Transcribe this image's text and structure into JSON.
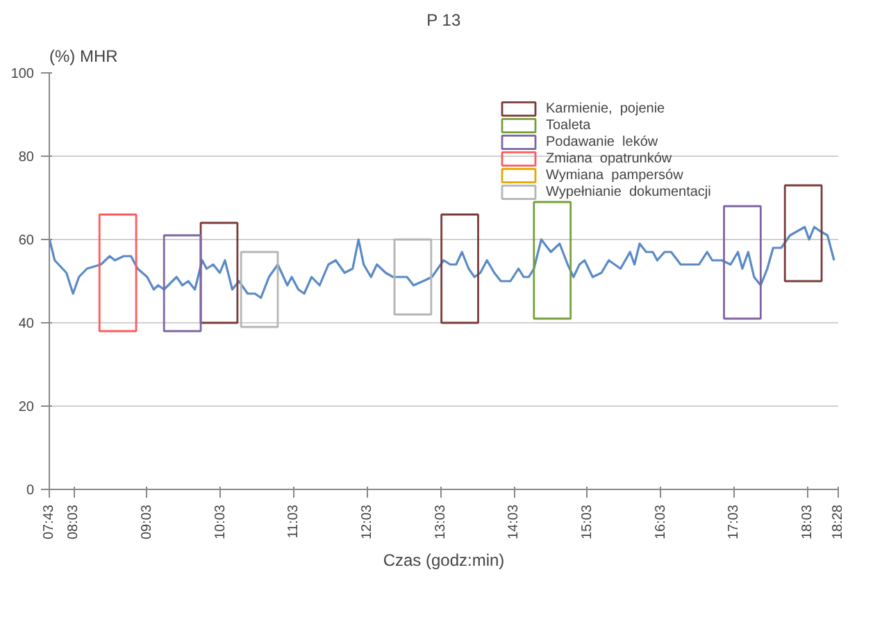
{
  "chart_data": {
    "type": "line",
    "title": "P 13",
    "xlabel": "Czas (godz:min)",
    "ylabel": "(%) MHR",
    "xlim": [
      7.7167,
      18.4667
    ],
    "ylim": [
      0,
      100
    ],
    "yticks": [
      0,
      20,
      40,
      60,
      80,
      100
    ],
    "xticks": [
      {
        "value": 7.7167,
        "label": "07:43"
      },
      {
        "value": 8.05,
        "label": "08:03"
      },
      {
        "value": 9.05,
        "label": "09:03"
      },
      {
        "value": 10.05,
        "label": "10:03"
      },
      {
        "value": 11.05,
        "label": "11:03"
      },
      {
        "value": 12.05,
        "label": "12:03"
      },
      {
        "value": 13.05,
        "label": "13:03"
      },
      {
        "value": 14.05,
        "label": "14:03"
      },
      {
        "value": 15.05,
        "label": "15:03"
      },
      {
        "value": 16.05,
        "label": "16:03"
      },
      {
        "value": 17.05,
        "label": "17:03"
      },
      {
        "value": 18.05,
        "label": "18:03"
      },
      {
        "value": 18.4667,
        "label": "18:28"
      }
    ],
    "grid": "y",
    "legend": "top right",
    "series": [
      {
        "color": "#5a8ac6",
        "x": [
          7.72,
          7.79,
          7.95,
          8.04,
          8.12,
          8.23,
          8.42,
          8.54,
          8.61,
          8.73,
          8.83,
          8.92,
          9.05,
          9.14,
          9.2,
          9.28,
          9.45,
          9.53,
          9.61,
          9.7,
          9.8,
          9.86,
          9.95,
          10.04,
          10.11,
          10.21,
          10.3,
          10.42,
          10.52,
          10.6,
          10.71,
          10.83,
          10.96,
          11.02,
          11.11,
          11.19,
          11.29,
          11.4,
          11.52,
          11.62,
          11.74,
          11.85,
          11.93,
          12.0,
          12.1,
          12.18,
          12.3,
          12.4,
          12.59,
          12.68,
          12.81,
          12.93,
          13.09,
          13.18,
          13.26,
          13.34,
          13.43,
          13.51,
          13.59,
          13.68,
          13.78,
          13.87,
          14.0,
          14.11,
          14.18,
          14.25,
          14.32,
          14.42,
          14.55,
          14.67,
          14.78,
          14.86,
          14.94,
          15.01,
          15.12,
          15.24,
          15.34,
          15.5,
          15.63,
          15.69,
          15.76,
          15.85,
          15.94,
          16.0,
          16.1,
          16.19,
          16.32,
          16.44,
          16.57,
          16.68,
          16.75,
          16.88,
          17.0,
          17.1,
          17.16,
          17.24,
          17.32,
          17.41,
          17.5,
          17.58,
          17.69,
          17.81,
          17.91,
          18.01,
          18.07,
          18.14,
          18.22,
          18.32,
          18.41
        ],
        "values": [
          60,
          55,
          52,
          47,
          51,
          53,
          54,
          56,
          55,
          56,
          56,
          53,
          51,
          48,
          49,
          48,
          51,
          49,
          50,
          48,
          55,
          53,
          54,
          52,
          55,
          48,
          50,
          47,
          47,
          46,
          51,
          54,
          49,
          51,
          48,
          47,
          51,
          49,
          54,
          55,
          52,
          53,
          60,
          54,
          51,
          54,
          52,
          51,
          51,
          49,
          50,
          51,
          55,
          54,
          54,
          57,
          53,
          51,
          52,
          55,
          52,
          50,
          50,
          53,
          51,
          51,
          53,
          60,
          57,
          59,
          54,
          51,
          54,
          55,
          51,
          52,
          55,
          53,
          57,
          54,
          59,
          57,
          57,
          55,
          57,
          57,
          54,
          54,
          54,
          57,
          55,
          55,
          54,
          57,
          53,
          57,
          51,
          49,
          53,
          58,
          58,
          61,
          62,
          63,
          60,
          63,
          62,
          61,
          55
        ]
      },
      {
        "type": "bar",
        "name": "Karmienie,  pojenie",
        "color": "#7b3b3b",
        "x": [
          10.03,
          13.31,
          17.99
        ],
        "base": [
          40,
          40,
          50
        ],
        "values": [
          24,
          26,
          23
        ]
      },
      {
        "type": "bar",
        "name": "Toaleta",
        "color": "#77a03a",
        "x": [
          14.57
        ],
        "base": [
          41
        ],
        "values": [
          28
        ]
      },
      {
        "type": "bar",
        "name": "Podawanie  leków",
        "color": "#8064a2",
        "x": [
          9.53,
          17.16
        ],
        "base": [
          38,
          41
        ],
        "values": [
          23,
          27
        ]
      },
      {
        "type": "bar",
        "name": "Zmiana  opatrunków",
        "color": "#ff5a5a",
        "x": [
          8.65
        ],
        "base": [
          38
        ],
        "values": [
          28
        ]
      },
      {
        "type": "bar",
        "name": "Wymiana  pampersów",
        "color": "#e6a800"
      },
      {
        "type": "bar",
        "name": "Wypełnianie  dokumentacji",
        "color": "#b5b5b5",
        "x": [
          10.58,
          12.67
        ],
        "base": [
          39,
          42
        ],
        "values": [
          18,
          18
        ]
      }
    ]
  }
}
